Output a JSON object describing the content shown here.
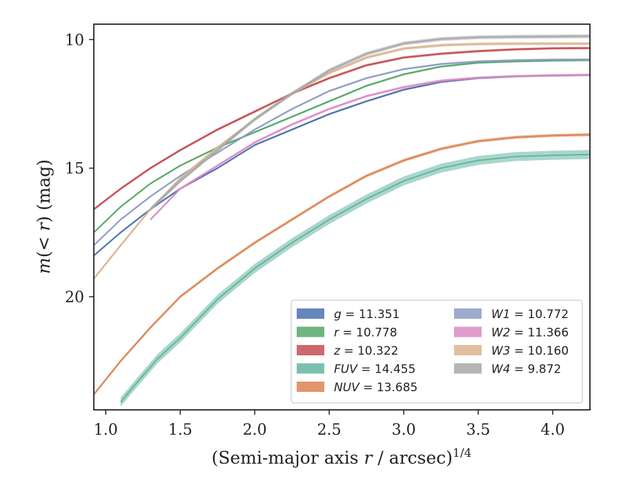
{
  "chart_data": {
    "type": "line",
    "xlabel": "(Semi-major axis r / arcsec)",
    "xlabel_var": "r",
    "xlabel_exp": "1/4",
    "ylabel": "m(< r) (mag)",
    "xlim": [
      0.92,
      4.25
    ],
    "ylim": [
      24.4,
      9.4
    ],
    "y_inverted": true,
    "x_ticks": [
      1.0,
      1.5,
      2.0,
      2.5,
      3.0,
      3.5,
      4.0
    ],
    "x_tick_labels": [
      "1.0",
      "1.5",
      "2.0",
      "2.5",
      "3.0",
      "3.5",
      "4.0"
    ],
    "y_ticks": [
      10,
      15,
      20
    ],
    "y_tick_labels": [
      "10",
      "15",
      "20"
    ],
    "legend_position": "lower-right",
    "legend_columns": 2,
    "series": [
      {
        "name": "g",
        "value": "11.351",
        "color": "#4c72b0",
        "band_width": 0.08,
        "x": [
          0.92,
          1.1,
          1.3,
          1.5,
          1.75,
          2.0,
          2.25,
          2.5,
          2.75,
          3.0,
          3.25,
          3.5,
          3.75,
          4.0,
          4.25
        ],
        "y": [
          18.4,
          17.5,
          16.6,
          15.8,
          15.0,
          14.1,
          13.5,
          12.9,
          12.4,
          11.95,
          11.65,
          11.5,
          11.43,
          11.4,
          11.38
        ]
      },
      {
        "name": "r",
        "value": "10.778",
        "color": "#55a868",
        "band_width": 0.08,
        "x": [
          0.92,
          1.1,
          1.3,
          1.5,
          1.75,
          2.0,
          2.25,
          2.5,
          2.75,
          3.0,
          3.25,
          3.5,
          3.75,
          4.0,
          4.25
        ],
        "y": [
          17.5,
          16.5,
          15.6,
          14.9,
          14.2,
          13.6,
          13.0,
          12.4,
          11.8,
          11.35,
          11.05,
          10.9,
          10.85,
          10.82,
          10.8
        ]
      },
      {
        "name": "z",
        "value": "10.322",
        "color": "#c44e52",
        "band_width": 0.1,
        "x": [
          0.92,
          1.1,
          1.3,
          1.5,
          1.75,
          2.0,
          2.25,
          2.5,
          2.75,
          3.0,
          3.25,
          3.5,
          3.75,
          4.0,
          4.25
        ],
        "y": [
          16.6,
          15.8,
          15.0,
          14.3,
          13.5,
          12.8,
          12.1,
          11.5,
          11.0,
          10.7,
          10.55,
          10.45,
          10.38,
          10.34,
          10.33
        ]
      },
      {
        "name": "FUV",
        "value": "14.455",
        "color": "#64b5a0",
        "band_width": 0.35,
        "x": [
          1.1,
          1.2,
          1.35,
          1.5,
          1.75,
          2.0,
          2.25,
          2.5,
          2.75,
          3.0,
          3.25,
          3.5,
          3.75,
          4.0,
          4.25
        ],
        "y": [
          24.1,
          23.4,
          22.4,
          21.6,
          20.1,
          18.9,
          17.9,
          17.0,
          16.2,
          15.5,
          15.0,
          14.7,
          14.55,
          14.5,
          14.47
        ]
      },
      {
        "name": "NUV",
        "value": "13.685",
        "color": "#dd8452",
        "band_width": 0.12,
        "x": [
          0.92,
          1.1,
          1.3,
          1.5,
          1.75,
          2.0,
          2.25,
          2.5,
          2.75,
          3.0,
          3.25,
          3.5,
          3.75,
          4.0,
          4.25
        ],
        "y": [
          23.8,
          22.5,
          21.2,
          20.0,
          18.9,
          17.9,
          17.0,
          16.1,
          15.3,
          14.7,
          14.25,
          13.95,
          13.8,
          13.73,
          13.7
        ]
      },
      {
        "name": "W1",
        "value": "10.772",
        "color": "#8c9cc4",
        "band_width": 0.08,
        "x": [
          0.92,
          1.1,
          1.3,
          1.5,
          1.75,
          2.0,
          2.25,
          2.5,
          2.75,
          3.0,
          3.25,
          3.5,
          3.75,
          4.0,
          4.25
        ],
        "y": [
          18.0,
          17.0,
          16.1,
          15.3,
          14.4,
          13.5,
          12.7,
          12.0,
          11.5,
          11.15,
          10.95,
          10.85,
          10.8,
          10.78,
          10.77
        ]
      },
      {
        "name": "W2",
        "value": "11.366",
        "color": "#da8bc3",
        "band_width": 0.1,
        "x": [
          1.3,
          1.5,
          1.75,
          2.0,
          2.25,
          2.5,
          2.75,
          3.0,
          3.25,
          3.5,
          3.75,
          4.0,
          4.25
        ],
        "y": [
          17.0,
          15.8,
          14.9,
          14.0,
          13.3,
          12.7,
          12.2,
          11.85,
          11.6,
          11.48,
          11.42,
          11.39,
          11.37
        ]
      },
      {
        "name": "W3",
        "value": "10.160",
        "color": "#d9b58f",
        "band_width": 0.12,
        "x": [
          0.92,
          1.1,
          1.3,
          1.5,
          1.75,
          2.0,
          2.25,
          2.5,
          2.75,
          3.0,
          3.25,
          3.5,
          3.75,
          4.0,
          4.25
        ],
        "y": [
          19.3,
          18.0,
          16.6,
          15.4,
          14.2,
          13.1,
          12.1,
          11.3,
          10.7,
          10.35,
          10.22,
          10.17,
          10.16,
          10.16,
          10.16
        ]
      },
      {
        "name": "W4",
        "value": "9.872",
        "color": "#a8a8a8",
        "band_width": 0.15,
        "x": [
          1.3,
          1.5,
          1.75,
          2.0,
          2.25,
          2.5,
          2.75,
          3.0,
          3.25,
          3.5,
          3.75,
          4.0,
          4.25
        ],
        "y": [
          16.6,
          15.5,
          14.3,
          13.1,
          12.1,
          11.2,
          10.55,
          10.15,
          9.98,
          9.91,
          9.89,
          9.88,
          9.87
        ]
      }
    ]
  }
}
